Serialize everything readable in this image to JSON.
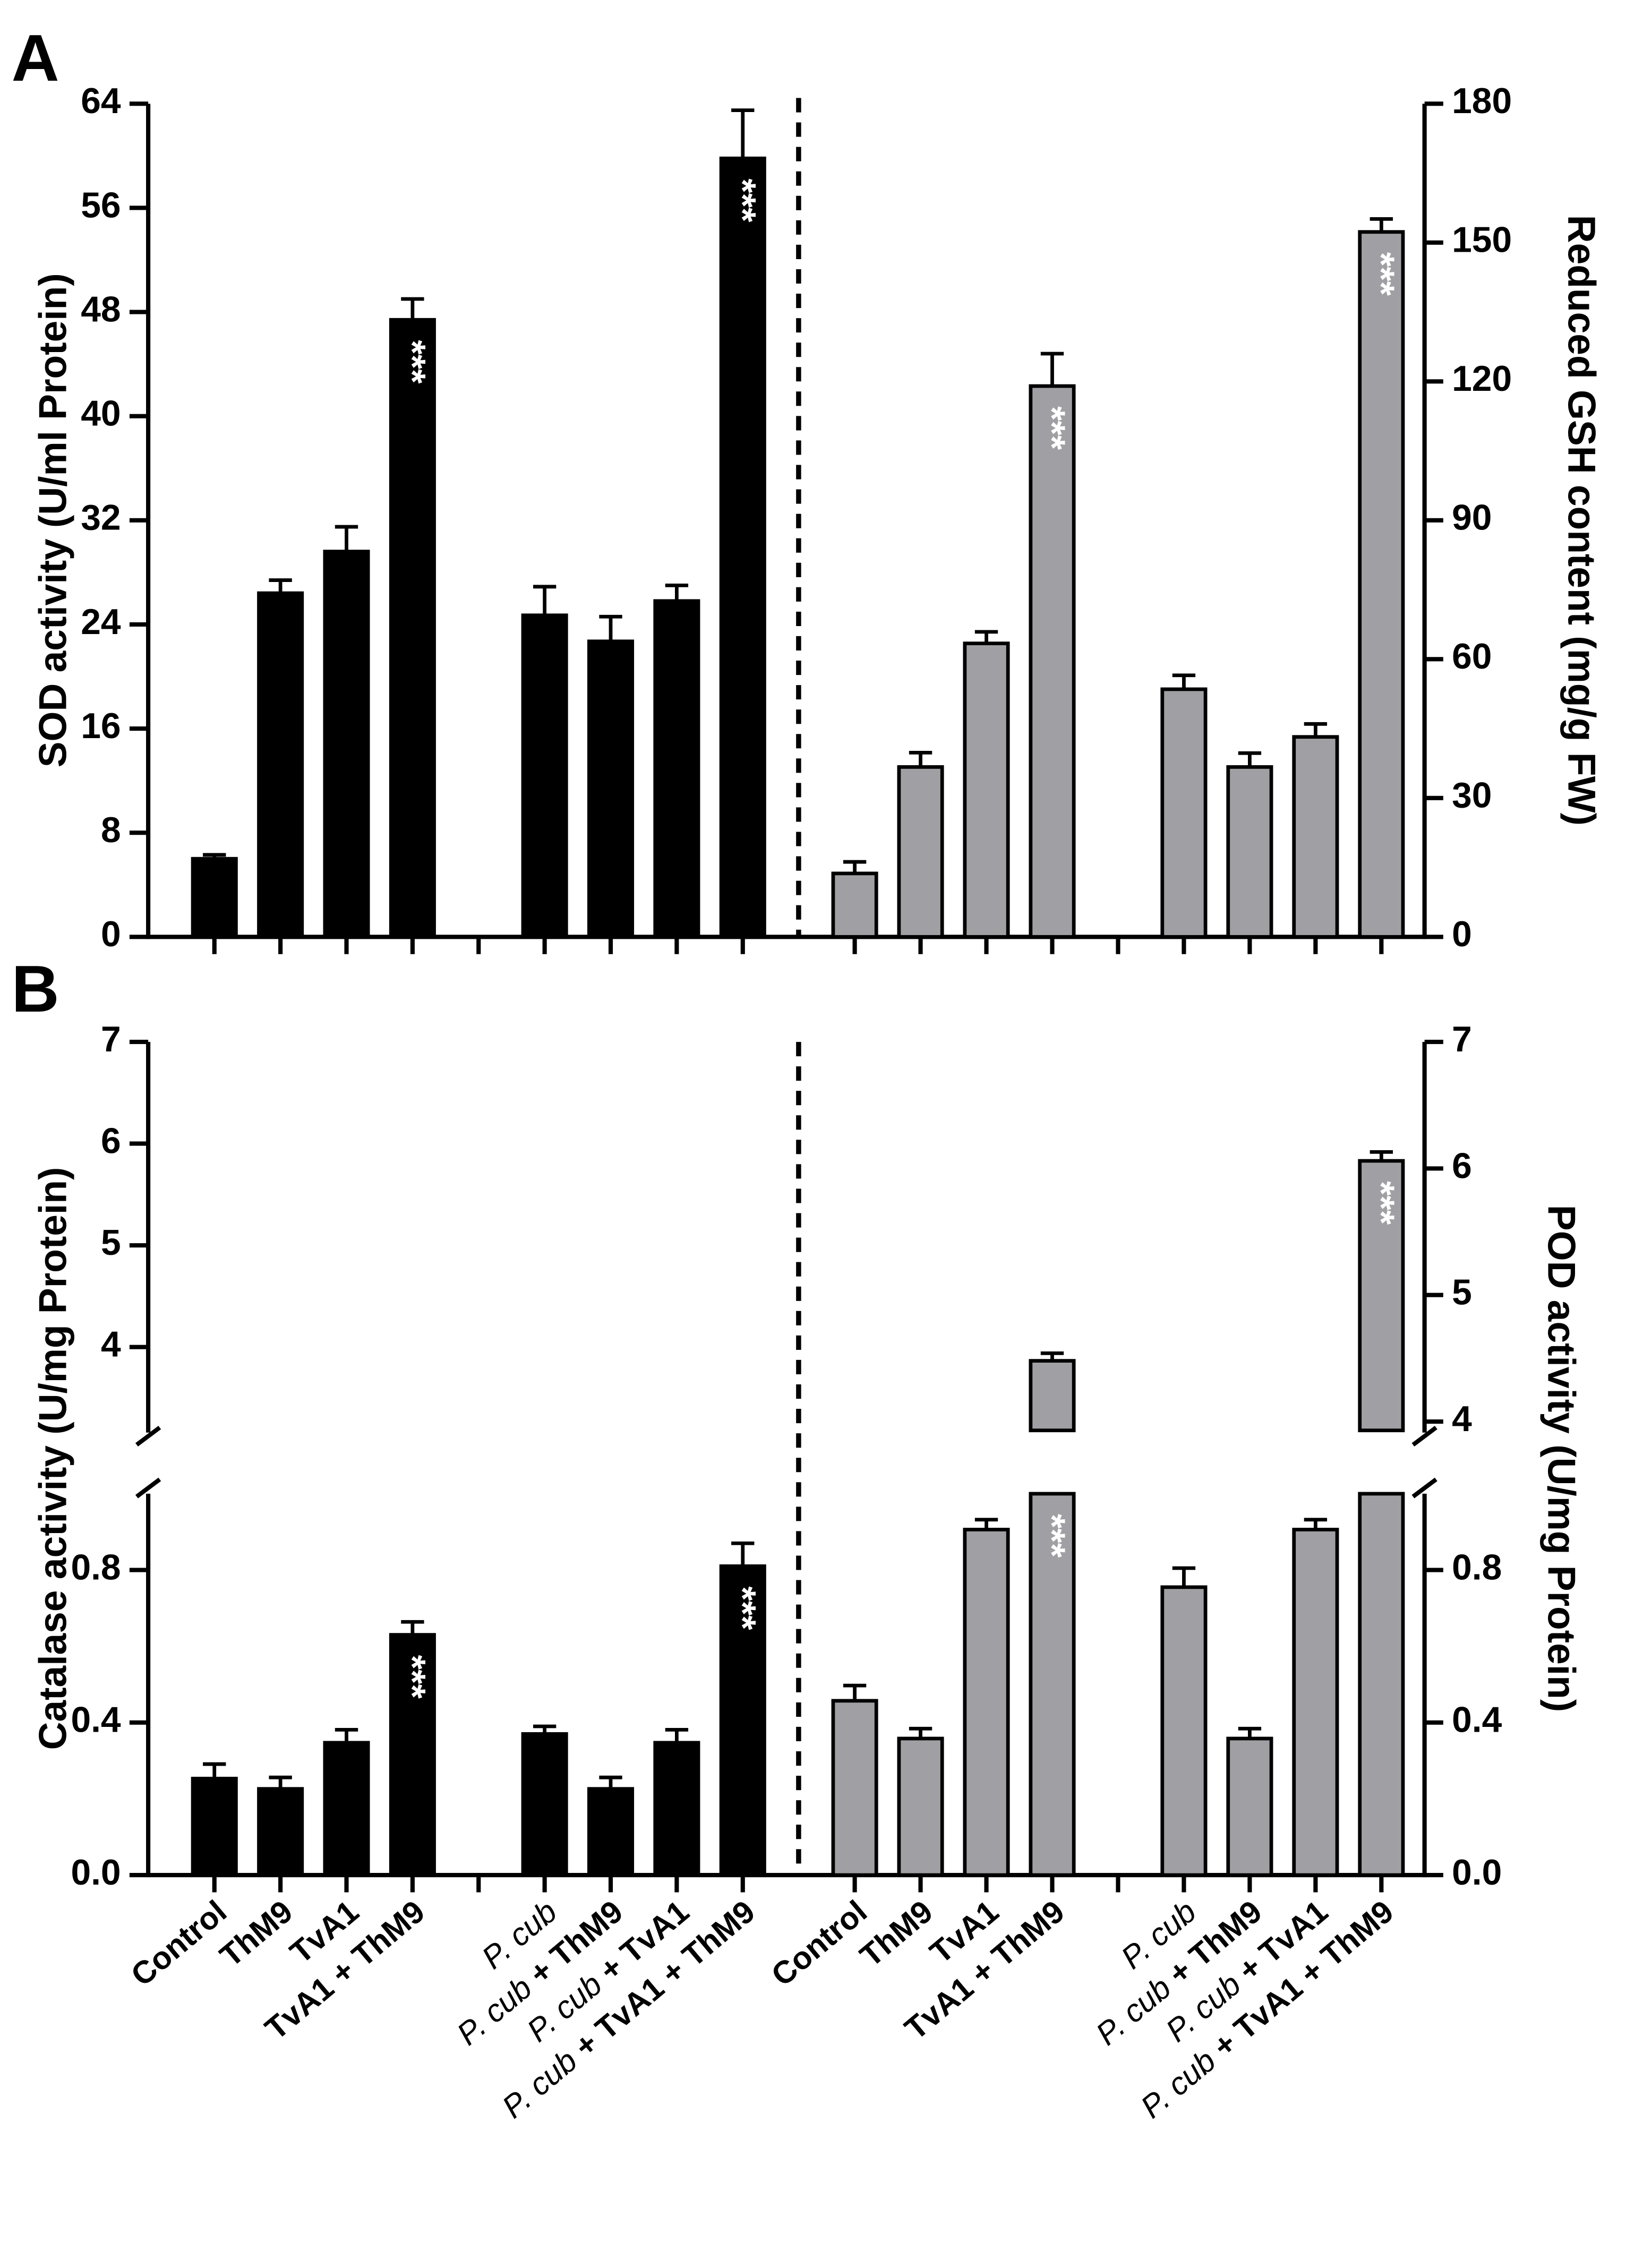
{
  "chart_data": [
    {
      "type": "bar",
      "panel_label": "A",
      "ylabel": "SOD activity (U/ml Protein)",
      "y2label": "Reduced GSH content (mg/g FW)",
      "ylim": [
        0,
        64
      ],
      "yticks": [
        0,
        8,
        16,
        24,
        32,
        40,
        48,
        56,
        64
      ],
      "y2lim": [
        0,
        180
      ],
      "y2ticks": [
        0,
        30,
        60,
        90,
        120,
        150,
        180
      ],
      "series": [
        {
          "color": "#000000",
          "axis": "y",
          "values": [
            6.0,
            26.4,
            29.6,
            47.4,
            24.7,
            22.7,
            25.8,
            59.8
          ],
          "errors": [
            0.3,
            1.0,
            1.9,
            1.6,
            2.2,
            1.9,
            1.2,
            3.7
          ],
          "annotations": [
            null,
            null,
            null,
            "***",
            null,
            null,
            null,
            "***"
          ]
        },
        {
          "color": "#a0a0a4",
          "axis": "y2",
          "values": [
            13.7,
            36.7,
            63.4,
            119,
            53.5,
            36.7,
            43.2,
            152.3
          ],
          "errors": [
            2.5,
            3.1,
            2.5,
            7,
            3,
            3,
            2.8,
            2.8
          ],
          "annotations": [
            null,
            null,
            null,
            "***",
            null,
            null,
            null,
            "***"
          ]
        }
      ]
    },
    {
      "type": "bar",
      "panel_label": "B",
      "ylabel": "Catalase activity (U/mg Protein)",
      "y2label": "POD activity (U/mg Protein)",
      "categories": [
        "Control",
        "ThM9",
        "TvA1",
        "TvA1 + ThM9",
        "P. cub",
        "P. cub + ThM9",
        "P. cub + TvA1",
        "P. cub + TvA1 + ThM9"
      ],
      "ylim_segments": [
        [
          0,
          1.0
        ],
        [
          3.18,
          7
        ]
      ],
      "yticks": [
        {
          "value": 0,
          "label": "0.0"
        },
        0.4,
        0.8,
        4,
        5,
        6,
        7
      ],
      "y2lim_segments": [
        [
          0,
          1.0
        ],
        [
          3.93,
          7
        ]
      ],
      "y2ticks": [
        {
          "value": 0,
          "label": "0.0"
        },
        0.4,
        0.8,
        4,
        5,
        6,
        7
      ],
      "series": [
        {
          "color": "#000000",
          "axis": "y",
          "values": [
            0.253,
            0.226,
            0.347,
            0.63,
            0.37,
            0.226,
            0.347,
            0.81
          ],
          "errors": [
            0.038,
            0.03,
            0.034,
            0.034,
            0.02,
            0.03,
            0.034,
            0.06
          ],
          "annotations": [
            null,
            null,
            null,
            "***",
            null,
            null,
            null,
            "***"
          ]
        },
        {
          "color": "#a0a0a4",
          "axis": "y2",
          "values": [
            0.457,
            0.358,
            0.906,
            4.48,
            0.755,
            0.358,
            0.906,
            6.06
          ],
          "errors": [
            0.04,
            0.026,
            0.026,
            0.06,
            0.05,
            0.026,
            0.026,
            0.07
          ],
          "annotations": [
            null,
            null,
            null,
            "***",
            null,
            null,
            null,
            "***"
          ]
        }
      ]
    }
  ]
}
